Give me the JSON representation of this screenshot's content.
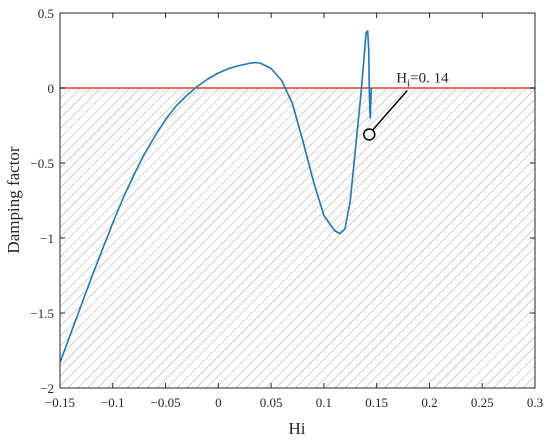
{
  "chart_data": {
    "type": "line",
    "title": "",
    "xlabel": "Hi",
    "ylabel": "Damping factor",
    "xlim": [
      -0.15,
      0.3
    ],
    "ylim": [
      -2,
      0.5
    ],
    "xticks": [
      -0.15,
      -0.1,
      -0.05,
      0,
      0.05,
      0.1,
      0.15,
      0.2,
      0.25,
      0.3
    ],
    "xtick_labels": [
      "−0.15",
      "−0.1",
      "−0.05",
      "0",
      "0.05",
      "0.1",
      "0.15",
      "0.2",
      "0.25",
      "0.3"
    ],
    "yticks": [
      0.5,
      0,
      -0.5,
      -1,
      -1.5,
      -2
    ],
    "ytick_labels": [
      "0.5",
      "0",
      "−0.5",
      "−1",
      "−1.5",
      "−2"
    ],
    "grid": false,
    "hatched_region": {
      "y_from": -2,
      "y_to": 0,
      "color": "#a6a6a6"
    },
    "reference_line": {
      "y": 0,
      "color": "#e8584a"
    },
    "series": [
      {
        "color": "#1f77b4",
        "x": [
          -0.15,
          -0.14,
          -0.13,
          -0.12,
          -0.11,
          -0.1,
          -0.09,
          -0.08,
          -0.07,
          -0.06,
          -0.05,
          -0.04,
          -0.03,
          -0.02,
          -0.01,
          0.0,
          0.01,
          0.02,
          0.03,
          0.035,
          0.04,
          0.05,
          0.06,
          0.07,
          0.08,
          0.09,
          0.1,
          0.11,
          0.115,
          0.12,
          0.125,
          0.13,
          0.135,
          0.138,
          0.14,
          0.1415,
          0.1425,
          0.143,
          0.1435,
          0.144,
          0.1445,
          0.145
        ],
        "y": [
          -1.83,
          -1.64,
          -1.45,
          -1.26,
          -1.08,
          -0.9,
          -0.73,
          -0.58,
          -0.44,
          -0.32,
          -0.21,
          -0.12,
          -0.05,
          0.01,
          0.06,
          0.1,
          0.13,
          0.15,
          0.165,
          0.17,
          0.165,
          0.13,
          0.05,
          -0.1,
          -0.35,
          -0.62,
          -0.85,
          -0.95,
          -0.97,
          -0.94,
          -0.75,
          -0.4,
          -0.05,
          0.2,
          0.37,
          0.38,
          0.25,
          0.0,
          -0.15,
          -0.2,
          -0.08,
          0.0
        ]
      }
    ],
    "annotation": {
      "text": "Hi=0. 14",
      "subscript_text": "i",
      "point": {
        "x": 0.143,
        "y": -0.31
      }
    }
  }
}
